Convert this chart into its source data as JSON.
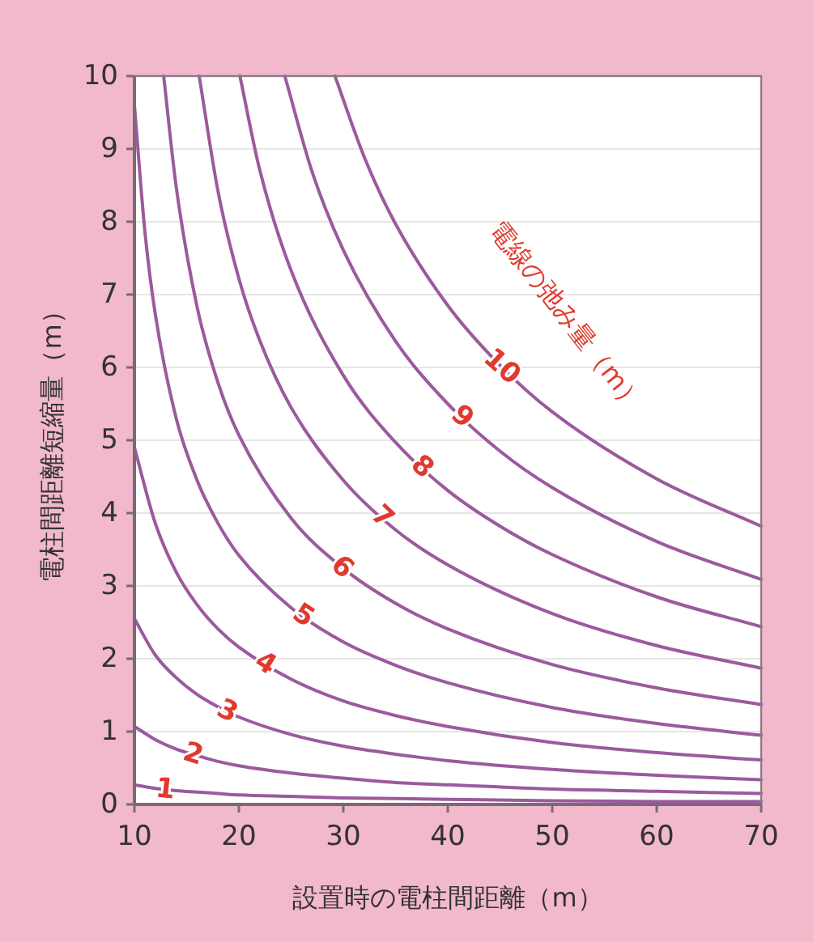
{
  "chart_data": {
    "type": "line",
    "xlabel": "設置時の電柱間距離（m）",
    "ylabel": "電柱間距離短縮量（m）",
    "annotations": [
      "電線の弛み量（m）"
    ],
    "xlim": [
      10,
      70
    ],
    "ylim": [
      0,
      10
    ],
    "xticks": [
      10,
      20,
      30,
      40,
      50,
      60,
      70
    ],
    "yticks": [
      0,
      1,
      2,
      3,
      4,
      5,
      6,
      7,
      8,
      9,
      10
    ],
    "grid": "y",
    "legend": false,
    "series": [
      {
        "name": "1",
        "color": "#9b5a9e",
        "x": [
          10,
          12,
          14,
          16,
          18,
          20,
          25,
          30,
          35,
          40,
          50,
          60,
          70
        ],
        "values": [
          0.27,
          0.22,
          0.19,
          0.17,
          0.15,
          0.13,
          0.11,
          0.09,
          0.08,
          0.07,
          0.05,
          0.04,
          0.04
        ]
      },
      {
        "name": "2",
        "color": "#9b5a9e",
        "x": [
          10,
          12,
          14,
          16,
          18,
          20,
          25,
          30,
          35,
          40,
          50,
          60,
          70
        ],
        "values": [
          1.07,
          0.89,
          0.76,
          0.67,
          0.59,
          0.53,
          0.43,
          0.36,
          0.3,
          0.27,
          0.21,
          0.18,
          0.15
        ]
      },
      {
        "name": "3",
        "color": "#9b5a9e",
        "x": [
          10,
          12,
          14,
          16,
          18,
          20,
          25,
          30,
          35,
          40,
          50,
          60,
          70
        ],
        "values": [
          2.55,
          2.05,
          1.74,
          1.51,
          1.34,
          1.2,
          0.96,
          0.8,
          0.69,
          0.6,
          0.48,
          0.4,
          0.34
        ]
      },
      {
        "name": "4",
        "color": "#9b5a9e",
        "x": [
          10,
          12,
          14,
          16,
          18,
          20,
          25,
          30,
          35,
          40,
          50,
          60,
          70
        ],
        "values": [
          4.9,
          3.86,
          3.19,
          2.74,
          2.41,
          2.16,
          1.72,
          1.42,
          1.22,
          1.07,
          0.85,
          0.71,
          0.61
        ]
      },
      {
        "name": "5",
        "color": "#9b5a9e",
        "x": [
          10,
          11,
          12,
          14,
          16,
          18,
          20,
          25,
          30,
          35,
          40,
          50,
          60,
          70
        ],
        "values": [
          9.6,
          7.87,
          6.73,
          5.3,
          4.45,
          3.86,
          3.42,
          2.7,
          2.23,
          1.91,
          1.67,
          1.33,
          1.11,
          0.95
        ]
      },
      {
        "name": "6",
        "color": "#9b5a9e",
        "x": [
          12.8,
          14,
          16,
          18,
          20,
          25,
          30,
          35,
          40,
          50,
          60,
          70
        ],
        "values": [
          10,
          8.48,
          6.83,
          5.79,
          5.07,
          3.93,
          3.24,
          2.76,
          2.41,
          1.92,
          1.6,
          1.37
        ]
      },
      {
        "name": "7",
        "color": "#9b5a9e",
        "x": [
          16.2,
          18,
          20,
          22,
          25,
          30,
          35,
          40,
          50,
          60,
          70
        ],
        "values": [
          10,
          8.42,
          7.22,
          6.37,
          5.45,
          4.45,
          3.77,
          3.29,
          2.62,
          2.18,
          1.87
        ]
      },
      {
        "name": "8",
        "color": "#9b5a9e",
        "x": [
          20.1,
          22,
          25,
          30,
          35,
          40,
          45,
          50,
          60,
          70
        ],
        "values": [
          10,
          8.71,
          7.33,
          5.89,
          4.97,
          4.31,
          3.82,
          3.43,
          2.85,
          2.44
        ]
      },
      {
        "name": "9",
        "color": "#9b5a9e",
        "x": [
          24.4,
          27,
          30,
          35,
          40,
          45,
          50,
          60,
          70
        ],
        "values": [
          10,
          8.69,
          7.61,
          6.36,
          5.5,
          4.85,
          4.35,
          3.61,
          3.09
        ]
      },
      {
        "name": "10",
        "color": "#9b5a9e",
        "x": [
          29.2,
          32,
          35,
          40,
          45,
          50,
          60,
          70
        ],
        "values": [
          10,
          8.89,
          7.97,
          6.85,
          6.03,
          5.39,
          4.47,
          3.82
        ]
      }
    ]
  }
}
